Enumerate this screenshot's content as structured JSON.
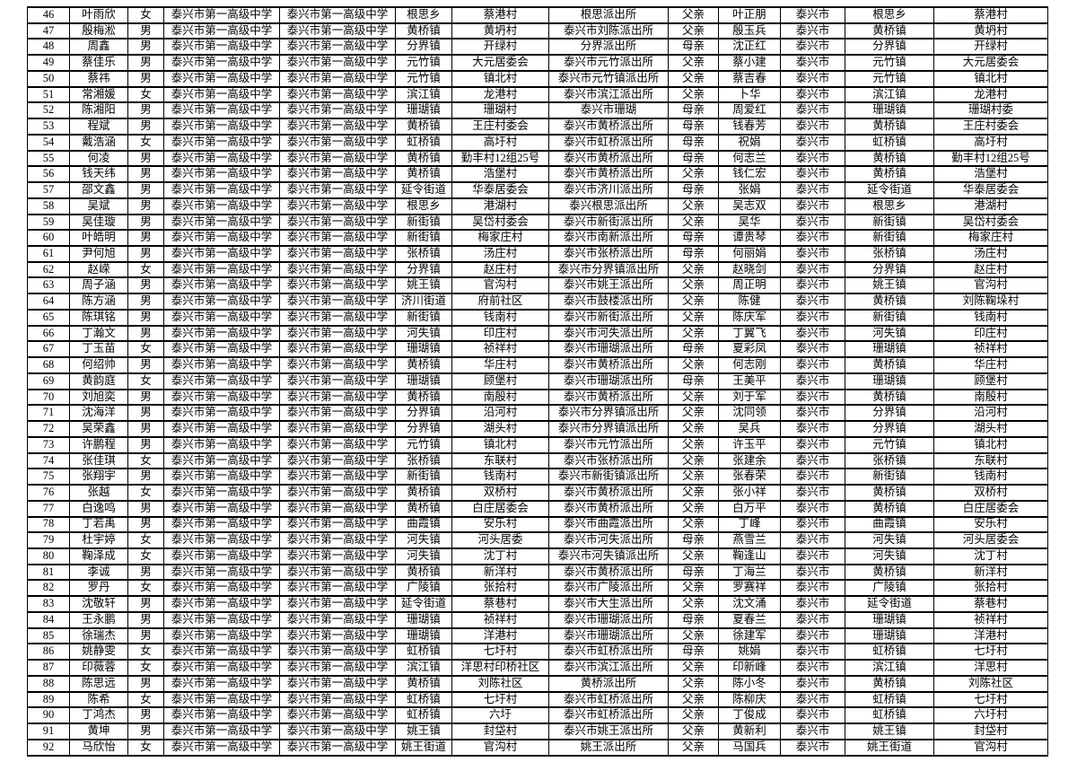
{
  "colors": {
    "background": "#ffffff",
    "grid_border": "#000000",
    "text": "#000000"
  },
  "table": {
    "first_row_number": "46",
    "last_row_number": "92",
    "rows": [
      [
        "46",
        "叶雨欣",
        "女",
        "泰兴市第一高级中学",
        "泰兴市第一高级中学",
        "根思乡",
        "蔡港村",
        "根思派出所",
        "父亲",
        "叶正朋",
        "泰兴市",
        "根思乡",
        "蔡港村"
      ],
      [
        "47",
        "殷梅淞",
        "男",
        "泰兴市第一高级中学",
        "泰兴市第一高级中学",
        "黄桥镇",
        "黄坍村",
        "泰兴市刘陈派出所",
        "父亲",
        "殷玉兵",
        "泰兴市",
        "黄桥镇",
        "黄坍村"
      ],
      [
        "48",
        "周鑫",
        "男",
        "泰兴市第一高级中学",
        "泰兴市第一高级中学",
        "分界镇",
        "开绿村",
        "分界派出所",
        "母亲",
        "沈正红",
        "泰兴市",
        "分界镇",
        "开绿村"
      ],
      [
        "49",
        "蔡佳乐",
        "男",
        "泰兴市第一高级中学",
        "泰兴市第一高级中学",
        "元竹镇",
        "大元居委会",
        "泰兴市元竹派出所",
        "父亲",
        "蔡小建",
        "泰兴市",
        "元竹镇",
        "大元居委会"
      ],
      [
        "50",
        "蔡祎",
        "男",
        "泰兴市第一高级中学",
        "泰兴市第一高级中学",
        "元竹镇",
        "镇北村",
        "泰兴市元竹镇派出所",
        "父亲",
        "蔡吉春",
        "泰兴市",
        "元竹镇",
        "镇北村"
      ],
      [
        "51",
        "常湘媛",
        "女",
        "泰兴市第一高级中学",
        "泰兴市第一高级中学",
        "滨江镇",
        "龙港村",
        "泰兴市滨江派出所",
        "父亲",
        "卜华",
        "泰兴市",
        "滨江镇",
        "龙港村"
      ],
      [
        "52",
        "陈湘阳",
        "男",
        "泰兴市第一高级中学",
        "泰兴市第一高级中学",
        "珊瑚镇",
        "珊瑚村",
        "泰兴市珊瑚",
        "母亲",
        "周爱红",
        "泰兴市",
        "珊瑚镇",
        "珊瑚村委"
      ],
      [
        "53",
        "程斌",
        "男",
        "泰兴市第一高级中学",
        "泰兴市第一高级中学",
        "黄桥镇",
        "王庄村委会",
        "泰兴市黄桥派出所",
        "母亲",
        "钱春芳",
        "泰兴市",
        "黄桥镇",
        "王庄村委会"
      ],
      [
        "54",
        "戴浩涵",
        "女",
        "泰兴市第一高级中学",
        "泰兴市第一高级中学",
        "虹桥镇",
        "高圩村",
        "泰兴市虹桥派出所",
        "母亲",
        "祝娟",
        "泰兴市",
        "虹桥镇",
        "高圩村"
      ],
      [
        "55",
        "何凌",
        "男",
        "泰兴市第一高级中学",
        "泰兴市第一高级中学",
        "黄桥镇",
        "勤丰村12组25号",
        "泰兴市黄桥派出所",
        "母亲",
        "何志兰",
        "泰兴市",
        "黄桥镇",
        "勤丰村12组25号"
      ],
      [
        "56",
        "钱天纬",
        "男",
        "泰兴市第一高级中学",
        "泰兴市第一高级中学",
        "黄桥镇",
        "浩堡村",
        "泰兴市黄桥派出所",
        "父亲",
        "钱仁宏",
        "泰兴市",
        "黄桥镇",
        "浩堡村"
      ],
      [
        "57",
        "邵文鑫",
        "男",
        "泰兴市第一高级中学",
        "泰兴市第一高级中学",
        "延令街道",
        "华泰居委会",
        "泰兴市济川派出所",
        "母亲",
        "张娟",
        "泰兴市",
        "延令街道",
        "华泰居委会"
      ],
      [
        "58",
        "吴斌",
        "男",
        "泰兴市第一高级中学",
        "泰兴市第一高级中学",
        "根思乡",
        "港湖村",
        "泰兴根思派出所",
        "父亲",
        "吴志双",
        "泰兴市",
        "根思乡",
        "港湖村"
      ],
      [
        "59",
        "吴佳璇",
        "男",
        "泰兴市第一高级中学",
        "泰兴市第一高级中学",
        "新街镇",
        "吴岱村委会",
        "泰兴市新街派出所",
        "父亲",
        "吴华",
        "泰兴市",
        "新街镇",
        "吴岱村委会"
      ],
      [
        "60",
        "叶皓明",
        "男",
        "泰兴市第一高级中学",
        "泰兴市第一高级中学",
        "新街镇",
        "梅家庄村",
        "泰兴市南新派出所",
        "母亲",
        "谭贵琴",
        "泰兴市",
        "新街镇",
        "梅家庄村"
      ],
      [
        "61",
        "尹何旭",
        "男",
        "泰兴市第一高级中学",
        "泰兴市第一高级中学",
        "张桥镇",
        "汤庄村",
        "泰兴市张桥派出所",
        "母亲",
        "何丽娟",
        "泰兴市",
        "张桥镇",
        "汤庄村"
      ],
      [
        "62",
        "赵嵘",
        "女",
        "泰兴市第一高级中学",
        "泰兴市第一高级中学",
        "分界镇",
        "赵庄村",
        "泰兴市分界镇派出所",
        "父亲",
        "赵晓剑",
        "泰兴市",
        "分界镇",
        "赵庄村"
      ],
      [
        "63",
        "周子涵",
        "男",
        "泰兴市第一高级中学",
        "泰兴市第一高级中学",
        "姚王镇",
        "官沟村",
        "泰兴市姚王派出所",
        "父亲",
        "周正明",
        "泰兴市",
        "姚王镇",
        "官沟村"
      ],
      [
        "64",
        "陈方涵",
        "男",
        "泰兴市第一高级中学",
        "泰兴市第一高级中学",
        "济川街道",
        "府前社区",
        "泰兴市鼓楼派出所",
        "父亲",
        "陈健",
        "泰兴市",
        "黄桥镇",
        "刘陈鞠垛村"
      ],
      [
        "65",
        "陈琪铭",
        "男",
        "泰兴市第一高级中学",
        "泰兴市第一高级中学",
        "新街镇",
        "钱南村",
        "泰兴市新街派出所",
        "父亲",
        "陈庆军",
        "泰兴市",
        "新街镇",
        "钱南村"
      ],
      [
        "66",
        "丁瀚文",
        "男",
        "泰兴市第一高级中学",
        "泰兴市第一高级中学",
        "河失镇",
        "印庄村",
        "泰兴市河失派出所",
        "父亲",
        "丁翼飞",
        "泰兴市",
        "河失镇",
        "印庄村"
      ],
      [
        "67",
        "丁玉苗",
        "女",
        "泰兴市第一高级中学",
        "泰兴市第一高级中学",
        "珊瑚镇",
        "祯祥村",
        "泰兴市珊瑚派出所",
        "母亲",
        "夏彩凤",
        "泰兴市",
        "珊瑚镇",
        "祯祥村"
      ],
      [
        "68",
        "何绍帅",
        "男",
        "泰兴市第一高级中学",
        "泰兴市第一高级中学",
        "黄桥镇",
        "华庄村",
        "泰兴市黄桥派出所",
        "父亲",
        "何志刚",
        "泰兴市",
        "黄桥镇",
        "华庄村"
      ],
      [
        "69",
        "黄韵庭",
        "女",
        "泰兴市第一高级中学",
        "泰兴市第一高级中学",
        "珊瑚镇",
        "顾堡村",
        "泰兴市珊瑚派出所",
        "母亲",
        "王美平",
        "泰兴市",
        "珊瑚镇",
        "顾堡村"
      ],
      [
        "70",
        "刘旭奕",
        "男",
        "泰兴市第一高级中学",
        "泰兴市第一高级中学",
        "黄桥镇",
        "南殷村",
        "泰兴市黄桥派出所",
        "父亲",
        "刘于军",
        "泰兴市",
        "黄桥镇",
        "南殷村"
      ],
      [
        "71",
        "沈海洋",
        "男",
        "泰兴市第一高级中学",
        "泰兴市第一高级中学",
        "分界镇",
        "沿河村",
        "泰兴市分界镇派出所",
        "父亲",
        "沈同领",
        "泰兴市",
        "分界镇",
        "沿河村"
      ],
      [
        "72",
        "吴荣鑫",
        "男",
        "泰兴市第一高级中学",
        "泰兴市第一高级中学",
        "分界镇",
        "湖头村",
        "泰兴市分界镇派出所",
        "父亲",
        "吴兵",
        "泰兴市",
        "分界镇",
        "湖头村"
      ],
      [
        "73",
        "许鹏程",
        "男",
        "泰兴市第一高级中学",
        "泰兴市第一高级中学",
        "元竹镇",
        "镇北村",
        "泰兴市元竹派出所",
        "父亲",
        "许玉平",
        "泰兴市",
        "元竹镇",
        "镇北村"
      ],
      [
        "74",
        "张佳琪",
        "女",
        "泰兴市第一高级中学",
        "泰兴市第一高级中学",
        "张桥镇",
        "东联村",
        "泰兴市张桥派出所",
        "父亲",
        "张建余",
        "泰兴市",
        "张桥镇",
        "东联村"
      ],
      [
        "75",
        "张翔宇",
        "男",
        "泰兴市第一高级中学",
        "泰兴市第一高级中学",
        "新街镇",
        "钱南村",
        "泰兴市新街镇派出所",
        "父亲",
        "张春荣",
        "泰兴市",
        "新街镇",
        "钱南村"
      ],
      [
        "76",
        "张越",
        "女",
        "泰兴市第一高级中学",
        "泰兴市第一高级中学",
        "黄桥镇",
        "双桥村",
        "泰兴市黄桥派出所",
        "父亲",
        "张小祥",
        "泰兴市",
        "黄桥镇",
        "双桥村"
      ],
      [
        "77",
        "白逸鸣",
        "男",
        "泰兴市第一高级中学",
        "泰兴市第一高级中学",
        "黄桥镇",
        "白庄居委会",
        "泰兴市黄桥派出所",
        "父亲",
        "白万平",
        "泰兴市",
        "黄桥镇",
        "白庄居委会"
      ],
      [
        "78",
        "丁若禹",
        "男",
        "泰兴市第一高级中学",
        "泰兴市第一高级中学",
        "曲霞镇",
        "安乐村",
        "泰兴市曲霞派出所",
        "父亲",
        "丁峰",
        "泰兴市",
        "曲霞镇",
        "安乐村"
      ],
      [
        "79",
        "杜宇婷",
        "女",
        "泰兴市第一高级中学",
        "泰兴市第一高级中学",
        "河失镇",
        "河头居委",
        "泰兴市河失派出所",
        "母亲",
        "燕雪兰",
        "泰兴市",
        "河失镇",
        "河头居委会"
      ],
      [
        "80",
        "鞠泽成",
        "女",
        "泰兴市第一高级中学",
        "泰兴市第一高级中学",
        "河失镇",
        "沈丁村",
        "泰兴市河失镇派出所",
        "父亲",
        "鞠逢山",
        "泰兴市",
        "河失镇",
        "沈丁村"
      ],
      [
        "81",
        "李诚",
        "男",
        "泰兴市第一高级中学",
        "泰兴市第一高级中学",
        "黄桥镇",
        "新洋村",
        "泰兴市黄桥派出所",
        "母亲",
        "丁海兰",
        "泰兴市",
        "黄桥镇",
        "新洋村"
      ],
      [
        "82",
        "罗丹",
        "女",
        "泰兴市第一高级中学",
        "泰兴市第一高级中学",
        "广陵镇",
        "张拾村",
        "泰兴市广陵派出所",
        "父亲",
        "罗赛祥",
        "泰兴市",
        "广陵镇",
        "张拾村"
      ],
      [
        "83",
        "沈敬轩",
        "男",
        "泰兴市第一高级中学",
        "泰兴市第一高级中学",
        "延令街道",
        "蔡巷村",
        "泰兴市大生派出所",
        "父亲",
        "沈文涌",
        "泰兴市",
        "延令街道",
        "蔡巷村"
      ],
      [
        "84",
        "王永鹏",
        "男",
        "泰兴市第一高级中学",
        "泰兴市第一高级中学",
        "珊瑚镇",
        "祯祥村",
        "泰兴市珊瑚派出所",
        "母亲",
        "夏春兰",
        "泰兴市",
        "珊瑚镇",
        "祯祥村"
      ],
      [
        "85",
        "徐瑞杰",
        "男",
        "泰兴市第一高级中学",
        "泰兴市第一高级中学",
        "珊瑚镇",
        "洋港村",
        "泰兴市珊瑚派出所",
        "父亲",
        "徐建军",
        "泰兴市",
        "珊瑚镇",
        "洋港村"
      ],
      [
        "86",
        "姚静雯",
        "女",
        "泰兴市第一高级中学",
        "泰兴市第一高级中学",
        "虹桥镇",
        "七圩村",
        "泰兴市虹桥派出所",
        "母亲",
        "姚娟",
        "泰兴市",
        "虹桥镇",
        "七圩村"
      ],
      [
        "87",
        "印薇蓉",
        "女",
        "泰兴市第一高级中学",
        "泰兴市第一高级中学",
        "滨江镇",
        "洋思村印桥社区",
        "泰兴市滨江派出所",
        "父亲",
        "印新峰",
        "泰兴市",
        "滨江镇",
        "洋思村"
      ],
      [
        "88",
        "陈思远",
        "男",
        "泰兴市第一高级中学",
        "泰兴市第一高级中学",
        "黄桥镇",
        "刘陈社区",
        "黄桥派出所",
        "父亲",
        "陈小冬",
        "泰兴市",
        "黄桥镇",
        "刘陈社区"
      ],
      [
        "89",
        "陈希",
        "女",
        "泰兴市第一高级中学",
        "泰兴市第一高级中学",
        "虹桥镇",
        "七圩村",
        "泰兴市虹桥派出所",
        "父亲",
        "陈柳庆",
        "泰兴市",
        "虹桥镇",
        "七圩村"
      ],
      [
        "90",
        "丁鸿杰",
        "男",
        "泰兴市第一高级中学",
        "泰兴市第一高级中学",
        "虹桥镇",
        "六圩",
        "泰兴市虹桥派出所",
        "父亲",
        "丁俊成",
        "泰兴市",
        "虹桥镇",
        "六圩村"
      ],
      [
        "91",
        "黄坤",
        "男",
        "泰兴市第一高级中学",
        "泰兴市第一高级中学",
        "姚王镇",
        "封垈村",
        "泰兴市姚王派出所",
        "父亲",
        "黄新利",
        "泰兴市",
        "姚王镇",
        "封垈村"
      ],
      [
        "92",
        "马欣怡",
        "女",
        "泰兴市第一高级中学",
        "泰兴市第一高级中学",
        "姚王街道",
        "官沟村",
        "姚王派出所",
        "父亲",
        "马国兵",
        "泰兴市",
        "姚王街道",
        "官沟村"
      ]
    ]
  }
}
